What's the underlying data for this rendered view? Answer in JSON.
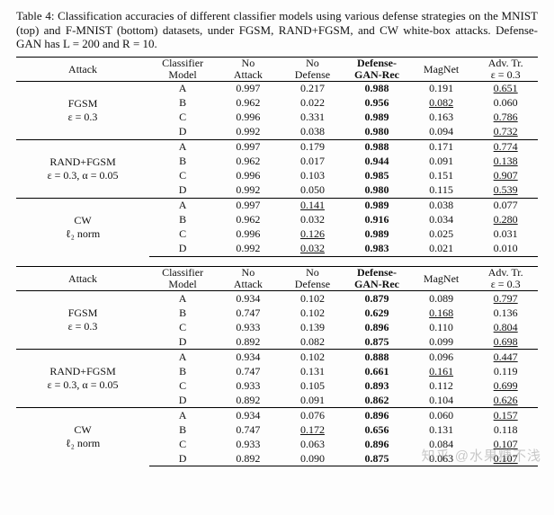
{
  "caption": "Table 4: Classification accuracies of different classifier models using various defense strategies on the MNIST (top) and F-MNIST (bottom) datasets, under FGSM, RAND+FGSM, and CW white-box attacks. Defense-GAN has L = 200 and R = 10.",
  "columns": {
    "attack": "Attack",
    "model": {
      "l1": "Classifier",
      "l2": "Model"
    },
    "noattack": {
      "l1": "No",
      "l2": "Attack"
    },
    "nodef": {
      "l1": "No",
      "l2": "Defense"
    },
    "ganrec": {
      "l1": "Defense-",
      "l2": "GAN-Rec"
    },
    "magnet": "MagNet",
    "advtr": {
      "l1": "Adv. Tr.",
      "l2": "ε = 0.3"
    }
  },
  "attacks_top": [
    {
      "name_l1": "FGSM",
      "name_l2": "ε = 0.3",
      "rows": [
        {
          "m": "A",
          "na": "0.997",
          "nd": "0.217",
          "gr": "0.988",
          "gb": true,
          "mn": "0.191",
          "at": "0.651",
          "atu": true
        },
        {
          "m": "B",
          "na": "0.962",
          "nd": "0.022",
          "gr": "0.956",
          "gb": true,
          "mn": "0.082",
          "mnu": true,
          "at": "0.060"
        },
        {
          "m": "C",
          "na": "0.996",
          "nd": "0.331",
          "gr": "0.989",
          "gb": true,
          "mn": "0.163",
          "at": "0.786",
          "atu": true
        },
        {
          "m": "D",
          "na": "0.992",
          "nd": "0.038",
          "gr": "0.980",
          "gb": true,
          "mn": "0.094",
          "at": "0.732",
          "atu": true
        }
      ]
    },
    {
      "name_l1": "RAND+FGSM",
      "name_l2": "ε = 0.3, α = 0.05",
      "rows": [
        {
          "m": "A",
          "na": "0.997",
          "nd": "0.179",
          "gr": "0.988",
          "gb": true,
          "mn": "0.171",
          "at": "0.774",
          "atu": true
        },
        {
          "m": "B",
          "na": "0.962",
          "nd": "0.017",
          "gr": "0.944",
          "gb": true,
          "mn": "0.091",
          "at": "0.138",
          "atu": true
        },
        {
          "m": "C",
          "na": "0.996",
          "nd": "0.103",
          "gr": "0.985",
          "gb": true,
          "mn": "0.151",
          "at": "0.907",
          "atu": true
        },
        {
          "m": "D",
          "na": "0.992",
          "nd": "0.050",
          "gr": "0.980",
          "gb": true,
          "mn": "0.115",
          "at": "0.539",
          "atu": true
        }
      ]
    },
    {
      "name_l1": "CW",
      "name_l2": "ℓ₂ norm",
      "rows": [
        {
          "m": "A",
          "na": "0.997",
          "nd": "0.141",
          "ndu": true,
          "gr": "0.989",
          "gb": true,
          "mn": "0.038",
          "at": "0.077"
        },
        {
          "m": "B",
          "na": "0.962",
          "nd": "0.032",
          "gr": "0.916",
          "gb": true,
          "mn": "0.034",
          "at": "0.280",
          "atu": true
        },
        {
          "m": "C",
          "na": "0.996",
          "nd": "0.126",
          "ndu": true,
          "gr": "0.989",
          "gb": true,
          "mn": "0.025",
          "at": "0.031"
        },
        {
          "m": "D",
          "na": "0.992",
          "nd": "0.032",
          "ndu": true,
          "gr": "0.983",
          "gb": true,
          "mn": "0.021",
          "at": "0.010"
        }
      ]
    }
  ],
  "attacks_bottom": [
    {
      "name_l1": "FGSM",
      "name_l2": "ε = 0.3",
      "rows": [
        {
          "m": "A",
          "na": "0.934",
          "nd": "0.102",
          "gr": "0.879",
          "gb": true,
          "mn": "0.089",
          "at": "0.797",
          "atu": true
        },
        {
          "m": "B",
          "na": "0.747",
          "nd": "0.102",
          "gr": "0.629",
          "gb": true,
          "mn": "0.168",
          "mnu": true,
          "at": "0.136"
        },
        {
          "m": "C",
          "na": "0.933",
          "nd": "0.139",
          "gr": "0.896",
          "gb": true,
          "mn": "0.110",
          "at": "0.804",
          "atu": true
        },
        {
          "m": "D",
          "na": "0.892",
          "nd": "0.082",
          "gr": "0.875",
          "gb": true,
          "mn": "0.099",
          "at": "0.698",
          "atu": true
        }
      ]
    },
    {
      "name_l1": "RAND+FGSM",
      "name_l2": "ε = 0.3, α = 0.05",
      "rows": [
        {
          "m": "A",
          "na": "0.934",
          "nd": "0.102",
          "gr": "0.888",
          "gb": true,
          "mn": "0.096",
          "at": "0.447",
          "atu": true
        },
        {
          "m": "B",
          "na": "0.747",
          "nd": "0.131",
          "gr": "0.661",
          "gb": true,
          "mn": "0.161",
          "mnu": true,
          "at": "0.119"
        },
        {
          "m": "C",
          "na": "0.933",
          "nd": "0.105",
          "gr": "0.893",
          "gb": true,
          "mn": "0.112",
          "at": "0.699",
          "atu": true
        },
        {
          "m": "D",
          "na": "0.892",
          "nd": "0.091",
          "gr": "0.862",
          "gb": true,
          "mn": "0.104",
          "at": "0.626",
          "atu": true
        }
      ]
    },
    {
      "name_l1": "CW",
      "name_l2": "ℓ₂ norm",
      "rows": [
        {
          "m": "A",
          "na": "0.934",
          "nd": "0.076",
          "gr": "0.896",
          "gb": true,
          "mn": "0.060",
          "at": "0.157",
          "atu": true
        },
        {
          "m": "B",
          "na": "0.747",
          "nd": "0.172",
          "ndu": true,
          "gr": "0.656",
          "gb": true,
          "mn": "0.131",
          "at": "0.118"
        },
        {
          "m": "C",
          "na": "0.933",
          "nd": "0.063",
          "gr": "0.896",
          "gb": true,
          "mn": "0.084",
          "at": "0.107",
          "atu": true
        },
        {
          "m": "D",
          "na": "0.892",
          "nd": "0.090",
          "gr": "0.875",
          "gb": true,
          "mn": "0.063",
          "at": "0.107",
          "atu": true
        }
      ]
    }
  ],
  "watermark": "知乎 @水果糖不浅",
  "style": {
    "font": "Times New Roman",
    "caption_fontsize": 13,
    "table_fontsize": 12,
    "heavy_rule_color": "#000",
    "heavy_rule_w": 1.5,
    "light_rule_w": 0.5,
    "bg": "#fdfdfd",
    "watermark_color": "#888"
  }
}
